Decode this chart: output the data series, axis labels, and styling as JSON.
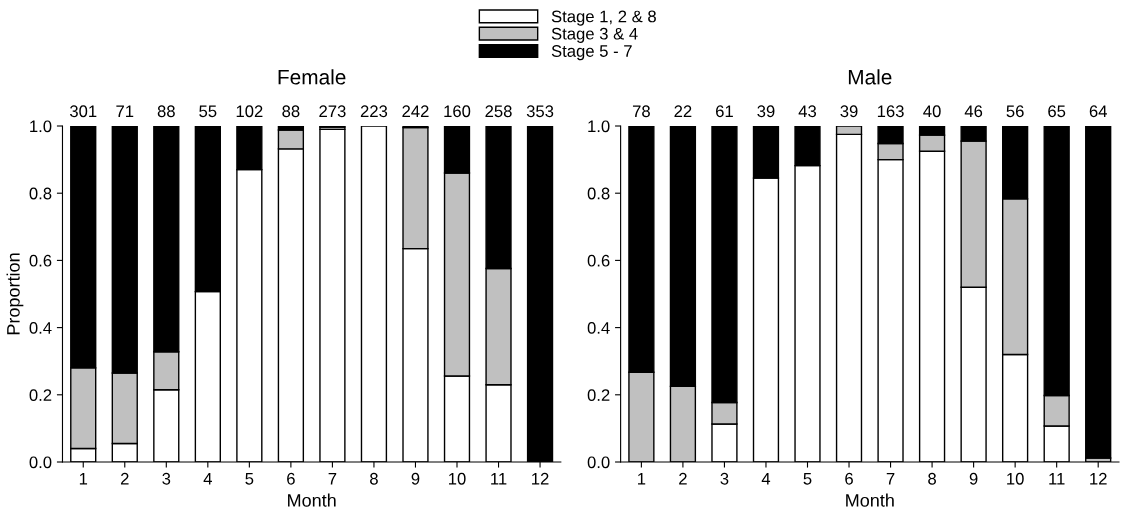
{
  "chart_data": [
    {
      "type": "bar",
      "stacked": true,
      "title": "Female",
      "xlabel": "Month",
      "ylabel": "Proportion",
      "legend": "top",
      "grid": false,
      "categories": [
        "1",
        "2",
        "3",
        "4",
        "5",
        "6",
        "7",
        "8",
        "9",
        "10",
        "11",
        "12"
      ],
      "series": [
        {
          "name": "Stage 1, 2 & 8",
          "color": "#ffffff",
          "values": [
            0.04,
            0.055,
            0.215,
            0.507,
            0.87,
            0.932,
            0.99,
            1.0,
            0.635,
            0.256,
            0.23,
            0.0
          ]
        },
        {
          "name": "Stage 3 & 4",
          "color": "#c0c0c0",
          "values": [
            0.24,
            0.21,
            0.113,
            0,
            0,
            0.056,
            0.007,
            0,
            0.36,
            0.604,
            0.346,
            0
          ]
        },
        {
          "name": "Stage 5 - 7",
          "color": "#000000",
          "values": [
            0.72,
            0.735,
            0.672,
            0.493,
            0.13,
            0.012,
            0.003,
            0,
            0.005,
            0.14,
            0.424,
            1.0
          ]
        }
      ],
      "annotations": [
        {
          "text": "301",
          "x": "1",
          "y": 1.0
        },
        {
          "text": "71",
          "x": "2",
          "y": 1.0
        },
        {
          "text": "88",
          "x": "3",
          "y": 1.0
        },
        {
          "text": "55",
          "x": "4",
          "y": 1.0
        },
        {
          "text": "102",
          "x": "5",
          "y": 1.0
        },
        {
          "text": "88",
          "x": "6",
          "y": 1.0
        },
        {
          "text": "273",
          "x": "7",
          "y": 1.0
        },
        {
          "text": "223",
          "x": "8",
          "y": 1.0
        },
        {
          "text": "242",
          "x": "9",
          "y": 1.0
        },
        {
          "text": "160",
          "x": "10",
          "y": 1.0
        },
        {
          "text": "258",
          "x": "11",
          "y": 1.0
        },
        {
          "text": "353",
          "x": "12",
          "y": 1.0
        }
      ],
      "ylim": [
        0,
        1.0
      ],
      "yticks": [
        {
          "value": 0,
          "label": "0.0"
        },
        {
          "value": 0.2,
          "label": "0.2"
        },
        {
          "value": 0.4,
          "label": "0.4"
        },
        {
          "value": 0.6,
          "label": "0.6"
        },
        {
          "value": 0.8,
          "label": "0.8"
        },
        {
          "value": 1.0,
          "label": "1.0"
        }
      ]
    },
    {
      "type": "bar",
      "stacked": true,
      "title": "Male",
      "xlabel": "Month",
      "legend": "top",
      "grid": false,
      "categories": [
        "1",
        "2",
        "3",
        "4",
        "5",
        "6",
        "7",
        "8",
        "9",
        "10",
        "11",
        "12"
      ],
      "series": [
        {
          "name": "Stage 1, 2 & 8",
          "color": "#ffffff",
          "values": [
            0,
            0,
            0.113,
            0.845,
            0.882,
            0.975,
            0.9,
            0.925,
            0.52,
            0.32,
            0.107,
            0
          ]
        },
        {
          "name": "Stage 3 & 4",
          "color": "#c0c0c0",
          "values": [
            0.267,
            0.225,
            0.064,
            0,
            0,
            0.025,
            0.048,
            0.048,
            0.435,
            0.463,
            0.091,
            0.012
          ]
        },
        {
          "name": "Stage 5 - 7",
          "color": "#000000",
          "values": [
            0.733,
            0.775,
            0.823,
            0.155,
            0.118,
            0,
            0.052,
            0.027,
            0.045,
            0.217,
            0.802,
            0.988
          ]
        }
      ],
      "annotations": [
        {
          "text": "78",
          "x": "1",
          "y": 1.0
        },
        {
          "text": "22",
          "x": "2",
          "y": 1.0
        },
        {
          "text": "61",
          "x": "3",
          "y": 1.0
        },
        {
          "text": "39",
          "x": "4",
          "y": 1.0
        },
        {
          "text": "43",
          "x": "5",
          "y": 1.0
        },
        {
          "text": "39",
          "x": "6",
          "y": 1.0
        },
        {
          "text": "163",
          "x": "7",
          "y": 1.0
        },
        {
          "text": "40",
          "x": "8",
          "y": 1.0
        },
        {
          "text": "46",
          "x": "9",
          "y": 1.0
        },
        {
          "text": "56",
          "x": "10",
          "y": 1.0
        },
        {
          "text": "65",
          "x": "11",
          "y": 1.0
        },
        {
          "text": "64",
          "x": "12",
          "y": 1.0
        }
      ],
      "ylim": [
        0,
        1.0
      ],
      "yticks": [
        {
          "value": 0,
          "label": "0.0"
        },
        {
          "value": 0.2,
          "label": "0.2"
        },
        {
          "value": 0.4,
          "label": "0.4"
        },
        {
          "value": 0.6,
          "label": "0.6"
        },
        {
          "value": 0.8,
          "label": "0.8"
        },
        {
          "value": 1.0,
          "label": "1.0"
        }
      ]
    }
  ]
}
